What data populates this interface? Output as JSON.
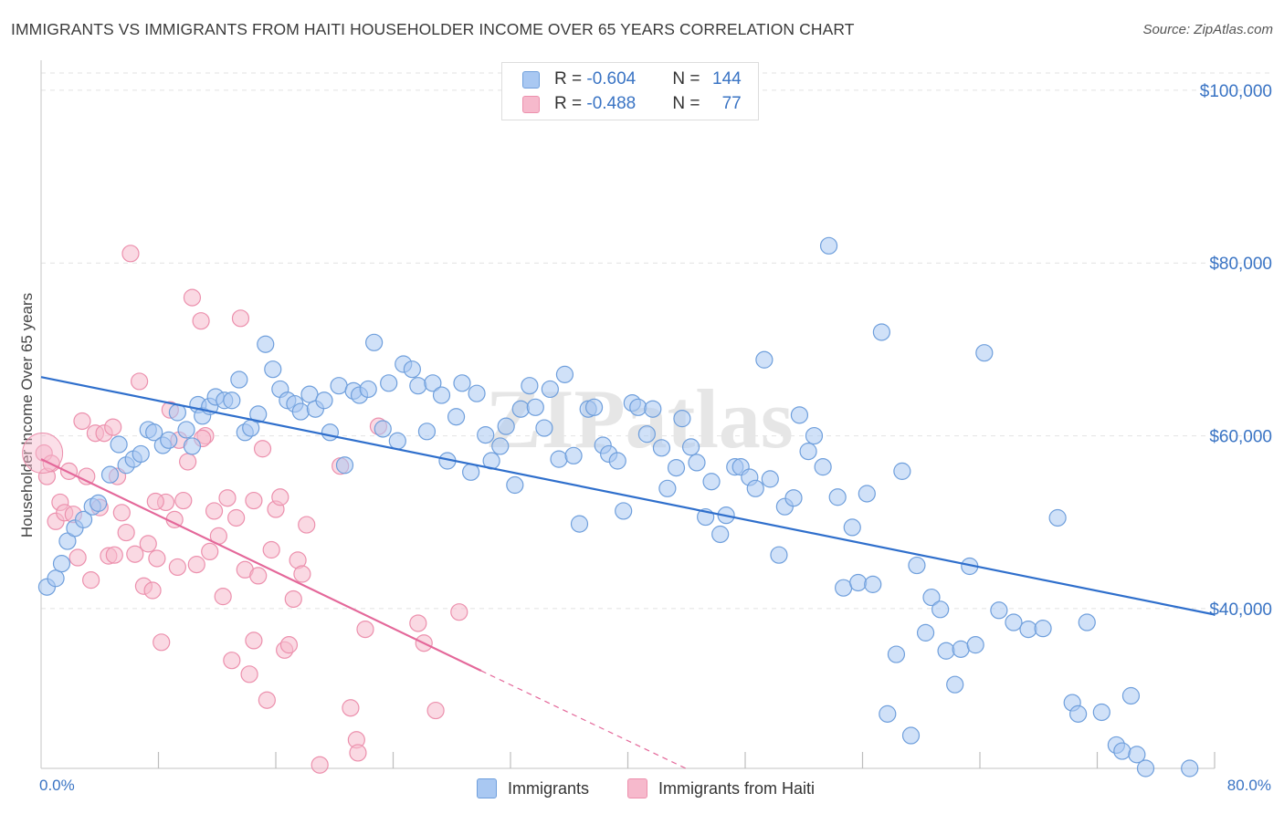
{
  "title": "IMMIGRANTS VS IMMIGRANTS FROM HAITI HOUSEHOLDER INCOME OVER 65 YEARS CORRELATION CHART",
  "source": "Source: ZipAtlas.com",
  "watermark": "ZIPatlas",
  "legend_top": {
    "rows": [
      {
        "r_label": "R = ",
        "r_value": "-0.604",
        "n_label": "N = ",
        "n_value": "144"
      },
      {
        "r_label": "R = ",
        "r_value": "-0.488",
        "n_label": "N = ",
        "n_value": "77"
      }
    ]
  },
  "colors": {
    "blue_fill": "#a9c8f2",
    "blue_stroke": "#6f9fdc",
    "blue_line": "#2f6fcc",
    "pink_fill": "#f6b9cc",
    "pink_stroke": "#ec90ad",
    "pink_line": "#e4689a",
    "axis_text": "#3a74c4",
    "grid": "#e2e2e2"
  },
  "chart_data": {
    "type": "scatter",
    "xlabel": "",
    "ylabel": "Householder Income Over 65 years",
    "xlim": [
      0,
      80
    ],
    "ylim": [
      21500,
      102000
    ],
    "x_tick_labels": [
      {
        "value": 0,
        "label": "0.0%"
      },
      {
        "value": 80,
        "label": "80.0%"
      }
    ],
    "y_ticks": [
      {
        "value": 100000,
        "label": "$100,000"
      },
      {
        "value": 80000,
        "label": "$80,000"
      },
      {
        "value": 60000,
        "label": "$60,000"
      },
      {
        "value": 40000,
        "label": "$40,000"
      }
    ],
    "x_minor_ticks": [
      8,
      16,
      24,
      32,
      40,
      48,
      56,
      64,
      72,
      80
    ],
    "grid": true,
    "legend_position": "bottom-center",
    "series": [
      {
        "name": "Immigrants",
        "color": "#a9c8f2",
        "trend": {
          "x0": 0,
          "y0": 66800,
          "x1": 80,
          "y1": 39300
        },
        "points": [
          [
            0.4,
            42500
          ],
          [
            1.0,
            43500
          ],
          [
            1.4,
            45200
          ],
          [
            1.8,
            47800
          ],
          [
            2.3,
            49300
          ],
          [
            2.9,
            50300
          ],
          [
            3.5,
            51800
          ],
          [
            3.9,
            52200
          ],
          [
            4.7,
            55500
          ],
          [
            5.3,
            59000
          ],
          [
            5.8,
            56600
          ],
          [
            6.3,
            57300
          ],
          [
            6.8,
            57900
          ],
          [
            7.3,
            60700
          ],
          [
            7.7,
            60400
          ],
          [
            8.3,
            58900
          ],
          [
            8.7,
            59500
          ],
          [
            9.3,
            62700
          ],
          [
            9.9,
            60700
          ],
          [
            10.3,
            58800
          ],
          [
            10.7,
            63600
          ],
          [
            11.0,
            62300
          ],
          [
            11.5,
            63400
          ],
          [
            11.9,
            64500
          ],
          [
            12.5,
            64100
          ],
          [
            13.0,
            64100
          ],
          [
            13.5,
            66500
          ],
          [
            13.9,
            60400
          ],
          [
            14.3,
            60900
          ],
          [
            14.8,
            62500
          ],
          [
            15.3,
            70600
          ],
          [
            15.8,
            67700
          ],
          [
            16.3,
            65400
          ],
          [
            16.8,
            64100
          ],
          [
            17.3,
            63700
          ],
          [
            17.7,
            62800
          ],
          [
            18.3,
            64800
          ],
          [
            18.7,
            63100
          ],
          [
            19.3,
            64100
          ],
          [
            19.7,
            60400
          ],
          [
            20.3,
            65800
          ],
          [
            20.7,
            56600
          ],
          [
            21.3,
            65200
          ],
          [
            21.7,
            64700
          ],
          [
            22.3,
            65400
          ],
          [
            22.7,
            70800
          ],
          [
            23.3,
            60800
          ],
          [
            23.7,
            66100
          ],
          [
            24.3,
            59400
          ],
          [
            24.7,
            68300
          ],
          [
            25.3,
            67700
          ],
          [
            25.7,
            65800
          ],
          [
            26.3,
            60500
          ],
          [
            26.7,
            66100
          ],
          [
            27.3,
            64700
          ],
          [
            27.7,
            57100
          ],
          [
            28.3,
            62200
          ],
          [
            28.7,
            66100
          ],
          [
            29.3,
            55800
          ],
          [
            29.7,
            64900
          ],
          [
            30.3,
            60100
          ],
          [
            30.7,
            57100
          ],
          [
            31.3,
            58800
          ],
          [
            31.7,
            61100
          ],
          [
            32.3,
            54300
          ],
          [
            32.7,
            63100
          ],
          [
            33.3,
            65800
          ],
          [
            33.7,
            63300
          ],
          [
            34.3,
            60900
          ],
          [
            34.7,
            65400
          ],
          [
            35.3,
            57300
          ],
          [
            35.7,
            67100
          ],
          [
            36.3,
            57700
          ],
          [
            36.7,
            49800
          ],
          [
            37.3,
            63100
          ],
          [
            37.7,
            63300
          ],
          [
            38.3,
            58900
          ],
          [
            38.7,
            57900
          ],
          [
            39.3,
            57100
          ],
          [
            39.7,
            51300
          ],
          [
            40.3,
            63800
          ],
          [
            40.7,
            63300
          ],
          [
            41.3,
            60200
          ],
          [
            41.7,
            63100
          ],
          [
            42.3,
            58600
          ],
          [
            42.7,
            53900
          ],
          [
            43.3,
            56300
          ],
          [
            43.7,
            62000
          ],
          [
            44.3,
            58700
          ],
          [
            44.7,
            56900
          ],
          [
            45.3,
            50600
          ],
          [
            45.7,
            54700
          ],
          [
            46.3,
            48600
          ],
          [
            46.7,
            50800
          ],
          [
            47.3,
            56400
          ],
          [
            47.7,
            56400
          ],
          [
            48.3,
            55200
          ],
          [
            48.7,
            53900
          ],
          [
            49.3,
            68800
          ],
          [
            49.7,
            55000
          ],
          [
            50.3,
            46200
          ],
          [
            50.7,
            51800
          ],
          [
            51.3,
            52800
          ],
          [
            51.7,
            62400
          ],
          [
            52.3,
            58200
          ],
          [
            52.7,
            60000
          ],
          [
            53.3,
            56400
          ],
          [
            53.7,
            82000
          ],
          [
            54.3,
            52900
          ],
          [
            54.7,
            42400
          ],
          [
            55.3,
            49400
          ],
          [
            55.7,
            43000
          ],
          [
            56.3,
            53300
          ],
          [
            56.7,
            42800
          ],
          [
            57.3,
            72000
          ],
          [
            57.7,
            27800
          ],
          [
            58.3,
            34700
          ],
          [
            58.7,
            55900
          ],
          [
            59.3,
            25300
          ],
          [
            59.7,
            45000
          ],
          [
            60.3,
            37200
          ],
          [
            60.7,
            41300
          ],
          [
            61.3,
            39900
          ],
          [
            61.7,
            35100
          ],
          [
            62.3,
            31200
          ],
          [
            62.7,
            35300
          ],
          [
            63.3,
            44900
          ],
          [
            63.7,
            35800
          ],
          [
            64.3,
            69600
          ],
          [
            65.3,
            39800
          ],
          [
            66.3,
            38400
          ],
          [
            67.3,
            37600
          ],
          [
            68.3,
            37700
          ],
          [
            69.3,
            50500
          ],
          [
            70.3,
            29100
          ],
          [
            70.7,
            27800
          ],
          [
            71.3,
            38400
          ],
          [
            72.3,
            28000
          ],
          [
            73.3,
            24200
          ],
          [
            73.7,
            23500
          ],
          [
            74.3,
            29900
          ],
          [
            74.7,
            23100
          ],
          [
            75.3,
            21500
          ],
          [
            78.3,
            21500
          ]
        ]
      },
      {
        "name": "Immigrants from Haiti",
        "color": "#f6b9cc",
        "trend": {
          "x0": 0,
          "y0": 57300,
          "x1": 30,
          "y1": 32800
        },
        "trend_dash": {
          "x0": 30,
          "y0": 32800,
          "x1": 45.8,
          "y1": 20000
        },
        "points": [
          [
            0.2,
            58000
          ],
          [
            0.4,
            55300
          ],
          [
            0.7,
            56800
          ],
          [
            1.0,
            50100
          ],
          [
            1.3,
            52300
          ],
          [
            1.6,
            51100
          ],
          [
            1.9,
            55900
          ],
          [
            2.2,
            50900
          ],
          [
            2.5,
            45900
          ],
          [
            2.8,
            61700
          ],
          [
            3.1,
            55300
          ],
          [
            3.4,
            43300
          ],
          [
            3.7,
            60300
          ],
          [
            4.0,
            51700
          ],
          [
            4.3,
            60300
          ],
          [
            4.6,
            46100
          ],
          [
            4.9,
            61000
          ],
          [
            5.2,
            55300
          ],
          [
            5.5,
            51100
          ],
          [
            5.8,
            48800
          ],
          [
            6.1,
            81100
          ],
          [
            6.4,
            46300
          ],
          [
            6.7,
            66300
          ],
          [
            7.0,
            42600
          ],
          [
            7.3,
            47500
          ],
          [
            7.6,
            42100
          ],
          [
            7.9,
            45800
          ],
          [
            8.2,
            36100
          ],
          [
            8.5,
            52300
          ],
          [
            8.8,
            63000
          ],
          [
            9.1,
            50300
          ],
          [
            9.4,
            59500
          ],
          [
            9.7,
            52500
          ],
          [
            10.0,
            57000
          ],
          [
            10.3,
            76000
          ],
          [
            10.6,
            45100
          ],
          [
            10.9,
            73300
          ],
          [
            11.2,
            60000
          ],
          [
            11.5,
            46600
          ],
          [
            11.8,
            51300
          ],
          [
            12.1,
            48400
          ],
          [
            12.4,
            41400
          ],
          [
            12.7,
            52800
          ],
          [
            13.0,
            34000
          ],
          [
            13.3,
            50500
          ],
          [
            13.6,
            73600
          ],
          [
            13.9,
            44500
          ],
          [
            14.2,
            32400
          ],
          [
            14.5,
            52500
          ],
          [
            14.8,
            43800
          ],
          [
            15.1,
            58500
          ],
          [
            15.4,
            29400
          ],
          [
            15.7,
            46800
          ],
          [
            16.0,
            51500
          ],
          [
            16.3,
            52900
          ],
          [
            16.6,
            35200
          ],
          [
            16.9,
            35800
          ],
          [
            17.2,
            41100
          ],
          [
            17.5,
            45600
          ],
          [
            17.8,
            44000
          ],
          [
            18.1,
            49700
          ],
          [
            19.0,
            21900
          ],
          [
            20.4,
            56500
          ],
          [
            21.1,
            28500
          ],
          [
            21.5,
            24800
          ],
          [
            21.6,
            23300
          ],
          [
            22.1,
            37600
          ],
          [
            23.0,
            61100
          ],
          [
            25.7,
            38300
          ],
          [
            26.1,
            36000
          ],
          [
            26.9,
            28200
          ],
          [
            28.5,
            39600
          ],
          [
            5.0,
            46200
          ],
          [
            9.3,
            44800
          ],
          [
            14.5,
            36300
          ],
          [
            7.8,
            52400
          ],
          [
            11.0,
            59700
          ]
        ]
      }
    ]
  }
}
